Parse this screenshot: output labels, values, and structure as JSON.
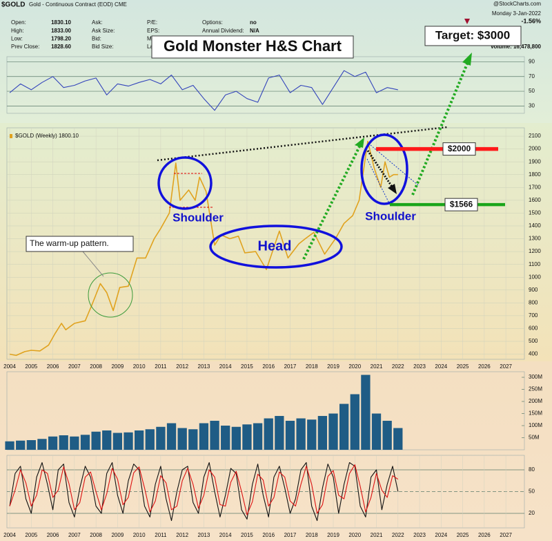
{
  "header": {
    "symbol": "$GOLD",
    "description": "Gold - Continuous Contract (EOD) CME",
    "source": "@StockCharts.com",
    "date": "Monday  3-Jan-2022",
    "change": "-1.56%",
    "volume": "Volume: 16,478,800",
    "col1": [
      [
        "Open:",
        "1830.10"
      ],
      [
        "High:",
        "1833.00"
      ],
      [
        "Low:",
        "1798.20"
      ],
      [
        "Prev Close:",
        "1828.60"
      ]
    ],
    "col2": [
      "Ask:",
      "Ask Size:",
      "Bid:",
      "Bid Size:"
    ],
    "col3": [
      "P/E:",
      "EPS:",
      "Mkt Cap:",
      "Last Trade:"
    ],
    "col4": [
      [
        "Options:",
        "no"
      ],
      [
        "Annual Dividend:",
        "N/A"
      ]
    ]
  },
  "chart_data": [
    {
      "type": "line",
      "title": "Gold Monster H&S Chart",
      "x": [
        2004,
        2004.3,
        2004.7,
        2005,
        2005.4,
        2005.8,
        2006.1,
        2006.4,
        2006.6,
        2007,
        2007.5,
        2007.8,
        2008.2,
        2008.5,
        2008.8,
        2009.1,
        2009.5,
        2009.9,
        2010.3,
        2010.7,
        2011,
        2011.4,
        2011.7,
        2011.9,
        2012.3,
        2012.6,
        2012.8,
        2013.1,
        2013.5,
        2013.8,
        2014.2,
        2014.6,
        2014.9,
        2015.4,
        2015.9,
        2016.5,
        2016.9,
        2017.4,
        2017.7,
        2018.1,
        2018.6,
        2019.1,
        2019.5,
        2019.9,
        2020.2,
        2020.6,
        2020.9,
        2021.2,
        2021.4,
        2021.6,
        2021.8,
        2022
      ],
      "series": [
        {
          "name": "$GOLD (Weekly) 1800.10",
          "color": "#e0a21e",
          "values": [
            400,
            390,
            420,
            430,
            425,
            470,
            560,
            640,
            590,
            640,
            660,
            780,
            950,
            880,
            740,
            920,
            930,
            1150,
            1150,
            1300,
            1380,
            1500,
            1890,
            1600,
            1680,
            1600,
            1780,
            1670,
            1250,
            1330,
            1300,
            1320,
            1190,
            1200,
            1060,
            1360,
            1150,
            1260,
            1300,
            1350,
            1180,
            1300,
            1420,
            1480,
            1600,
            2060,
            1850,
            1700,
            1900,
            1780,
            1800,
            1800
          ]
        }
      ],
      "xlim": [
        2003.87,
        2027.86
      ],
      "xticks": [
        2004,
        2005,
        2006,
        2007,
        2008,
        2009,
        2010,
        2011,
        2012,
        2013,
        2014,
        2015,
        2016,
        2017,
        2018,
        2019,
        2020,
        2021,
        2022,
        2023,
        2024,
        2025,
        2026,
        2027
      ],
      "ylim": [
        360,
        2165
      ],
      "yticks": [
        400,
        500,
        600,
        700,
        800,
        900,
        1000,
        1100,
        1200,
        1300,
        1400,
        1500,
        1600,
        1700,
        1800,
        1900,
        2000,
        2100
      ],
      "grid": true,
      "levels": [
        {
          "value": 2000,
          "label": "$2000",
          "color": "#ff1a1a"
        },
        {
          "value": 1566,
          "label": "$1566",
          "color": "#1aa51a"
        }
      ],
      "annotations": [
        "The warm-up pattern.",
        "Shoulder",
        "Head",
        "Shoulder",
        "Target: $3000"
      ]
    },
    {
      "type": "line",
      "x": [
        2004,
        2004.5,
        2005,
        2005.5,
        2006,
        2006.5,
        2007,
        2007.5,
        2008,
        2008.5,
        2009,
        2009.5,
        2010,
        2010.5,
        2011,
        2011.5,
        2012,
        2012.5,
        2013,
        2013.5,
        2014,
        2014.5,
        2015,
        2015.5,
        2016,
        2016.5,
        2017,
        2017.5,
        2018,
        2018.5,
        2019,
        2019.5,
        2020,
        2020.5,
        2021,
        2021.5,
        2022
      ],
      "series": [
        {
          "color": "#3344bb",
          "values": [
            48,
            60,
            52,
            62,
            70,
            55,
            58,
            64,
            68,
            45,
            60,
            57,
            62,
            66,
            60,
            72,
            52,
            58,
            40,
            24,
            45,
            50,
            40,
            35,
            68,
            72,
            48,
            58,
            55,
            32,
            55,
            78,
            70,
            76,
            48,
            55,
            52
          ]
        }
      ],
      "xlim": [
        2003.87,
        2027.86
      ],
      "ylim": [
        20,
        97
      ],
      "yticks": [
        30,
        50,
        70,
        90
      ],
      "grid": true
    },
    {
      "type": "bar",
      "x": [
        2004,
        2004.5,
        2005,
        2005.5,
        2006,
        2006.5,
        2007,
        2007.5,
        2008,
        2008.5,
        2009,
        2009.5,
        2010,
        2010.5,
        2011,
        2011.5,
        2012,
        2012.5,
        2013,
        2013.5,
        2014,
        2014.5,
        2015,
        2015.5,
        2016,
        2016.5,
        2017,
        2017.5,
        2018,
        2018.5,
        2019,
        2019.5,
        2020,
        2020.5,
        2021,
        2021.5,
        2022
      ],
      "values": [
        35,
        38,
        40,
        45,
        55,
        60,
        55,
        62,
        75,
        80,
        70,
        72,
        80,
        85,
        95,
        110,
        90,
        85,
        110,
        120,
        100,
        95,
        105,
        110,
        130,
        140,
        120,
        130,
        125,
        140,
        150,
        190,
        230,
        310,
        150,
        120,
        90
      ],
      "color": "#1f5c85",
      "xlim": [
        2003.87,
        2027.86
      ],
      "ylim": [
        0,
        323
      ],
      "yticks": [
        {
          "value": 50,
          "label": "50M"
        },
        {
          "value": 100,
          "label": "100M"
        },
        {
          "value": 150,
          "label": "150M"
        },
        {
          "value": 200,
          "label": "200M"
        },
        {
          "value": 250,
          "label": "250M"
        },
        {
          "value": 300,
          "label": "300M"
        }
      ],
      "grid": false
    },
    {
      "type": "line",
      "x": [
        2004,
        2004.25,
        2004.5,
        2004.75,
        2005,
        2005.25,
        2005.5,
        2005.75,
        2006,
        2006.25,
        2006.5,
        2006.75,
        2007,
        2007.25,
        2007.5,
        2007.75,
        2008,
        2008.25,
        2008.5,
        2008.75,
        2009,
        2009.25,
        2009.5,
        2009.75,
        2010,
        2010.25,
        2010.5,
        2010.75,
        2011,
        2011.25,
        2011.5,
        2011.75,
        2012,
        2012.25,
        2012.5,
        2012.75,
        2013,
        2013.25,
        2013.5,
        2013.75,
        2014,
        2014.25,
        2014.5,
        2014.75,
        2015,
        2015.25,
        2015.5,
        2015.75,
        2016,
        2016.25,
        2016.5,
        2016.75,
        2017,
        2017.25,
        2017.5,
        2017.75,
        2018,
        2018.25,
        2018.5,
        2018.75,
        2019,
        2019.25,
        2019.5,
        2019.75,
        2020,
        2020.25,
        2020.5,
        2020.75,
        2021,
        2021.25,
        2021.5,
        2021.75,
        2022
      ],
      "series": [
        {
          "color": "#111111",
          "values": [
            30,
            75,
            85,
            40,
            20,
            70,
            90,
            60,
            25,
            80,
            88,
            35,
            15,
            55,
            85,
            70,
            30,
            20,
            75,
            90,
            45,
            20,
            65,
            88,
            80,
            30,
            15,
            60,
            85,
            40,
            10,
            50,
            80,
            85,
            35,
            20,
            70,
            90,
            50,
            15,
            45,
            82,
            75,
            25,
            12,
            60,
            88,
            45,
            15,
            70,
            85,
            55,
            20,
            40,
            80,
            90,
            30,
            10,
            55,
            88,
            70,
            20,
            60,
            90,
            85,
            30,
            15,
            70,
            80,
            25,
            60,
            85,
            50
          ]
        },
        {
          "color": "#dd1111",
          "values": [
            30,
            52,
            80,
            62,
            30,
            45,
            80,
            75,
            42,
            52,
            84,
            61,
            25,
            35,
            70,
            77,
            50,
            25,
            47,
            82,
            67,
            32,
            42,
            76,
            84,
            55,
            22,
            37,
            72,
            62,
            25,
            30,
            65,
            82,
            60,
            27,
            45,
            80,
            70,
            32,
            30,
            63,
            78,
            50,
            18,
            36,
            74,
            66,
            30,
            42,
            77,
            70,
            37,
            30,
            60,
            85,
            60,
            20,
            32,
            71,
            79,
            45,
            40,
            75,
            87,
            57,
            22,
            42,
            75,
            52,
            42,
            72,
            67
          ]
        }
      ],
      "xlim": [
        2003.87,
        2027.86
      ],
      "xticks": [
        2004,
        2005,
        2006,
        2007,
        2008,
        2009,
        2010,
        2011,
        2012,
        2013,
        2014,
        2015,
        2016,
        2017,
        2018,
        2019,
        2020,
        2021,
        2022,
        2023,
        2024,
        2025,
        2026,
        2027
      ],
      "ylim": [
        0,
        100
      ],
      "yticks": [
        20,
        50,
        80
      ],
      "grid": true
    }
  ]
}
